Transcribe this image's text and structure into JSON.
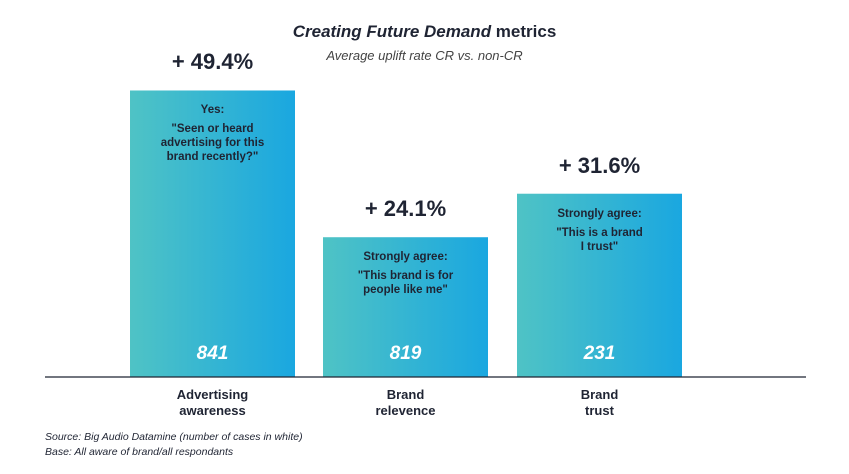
{
  "title_italic": "Creating Future Demand",
  "title_plain": " metrics",
  "subtitle": "Average uplift rate CR vs. non-CR",
  "footnotes": {
    "source": "Source: Big Audio Datamine (number of cases in white)",
    "base": "Base: All aware of brand/all respondants"
  },
  "colors": {
    "bar_left": "#4fc3c5",
    "bar_right": "#1aa7e0",
    "text": "#1f2433"
  },
  "chart_data": {
    "type": "bar",
    "categories": [
      "Advertising awareness",
      "Brand relevence",
      "Brand trust"
    ],
    "series": [
      {
        "values": [
          49.4,
          24.1,
          31.6
        ]
      }
    ],
    "ylim": [
      0,
      55
    ],
    "grid": false,
    "bars": [
      {
        "uplift": "+ 49.4%",
        "count": "841",
        "note_head": "Yes:",
        "note_lines": [
          "\"Seen or heard",
          "advertising for this",
          "brand recently?\""
        ],
        "label_lines": [
          "Advertising",
          "awareness"
        ]
      },
      {
        "uplift": "+ 24.1%",
        "count": "819",
        "note_head": "Strongly agree:",
        "note_lines": [
          "\"This brand is for",
          "people like me\""
        ],
        "label_lines": [
          "Brand",
          "relevence"
        ]
      },
      {
        "uplift": "+ 31.6%",
        "count": "231",
        "note_head": "Strongly agree:",
        "note_lines": [
          "\"This is a brand",
          "I trust\""
        ],
        "label_lines": [
          "Brand",
          "trust"
        ]
      }
    ]
  }
}
